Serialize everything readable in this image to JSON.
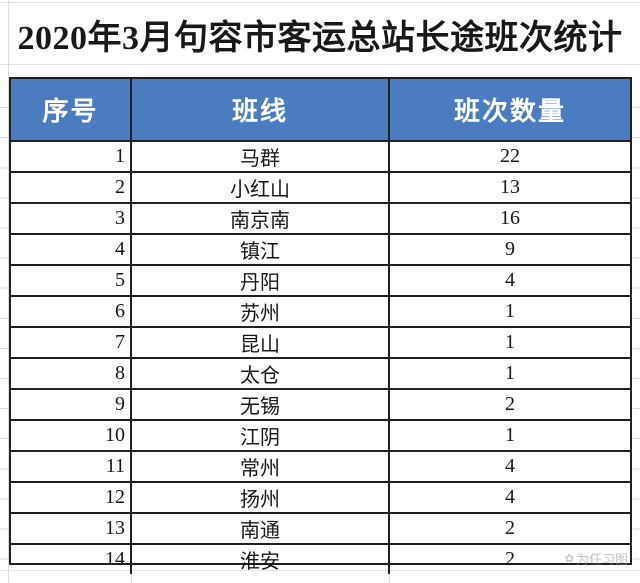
{
  "title": "2020年3月句容市客运总站长途班次统计",
  "table": {
    "columns": [
      "序号",
      "班线",
      "班次数量"
    ],
    "rows": [
      {
        "no": "1",
        "route": "马群",
        "count": "22"
      },
      {
        "no": "2",
        "route": "小红山",
        "count": "13"
      },
      {
        "no": "3",
        "route": "南京南",
        "count": "16"
      },
      {
        "no": "4",
        "route": "镇江",
        "count": "9"
      },
      {
        "no": "5",
        "route": "丹阳",
        "count": "4"
      },
      {
        "no": "6",
        "route": "苏州",
        "count": "1"
      },
      {
        "no": "7",
        "route": "昆山",
        "count": "1"
      },
      {
        "no": "8",
        "route": "太仓",
        "count": "1"
      },
      {
        "no": "9",
        "route": "无锡",
        "count": "2"
      },
      {
        "no": "10",
        "route": "江阴",
        "count": "1"
      },
      {
        "no": "11",
        "route": "常州",
        "count": "4"
      },
      {
        "no": "12",
        "route": "扬州",
        "count": "4"
      },
      {
        "no": "13",
        "route": "南通",
        "count": "2"
      },
      {
        "no": "14",
        "route": "淮安",
        "count": "2"
      }
    ]
  },
  "watermark": "为任习图",
  "colors": {
    "header_bg": "#4b7cc0",
    "header_text": "#ffffff",
    "border": "#1f2126",
    "grid": "#cfcfcf"
  }
}
